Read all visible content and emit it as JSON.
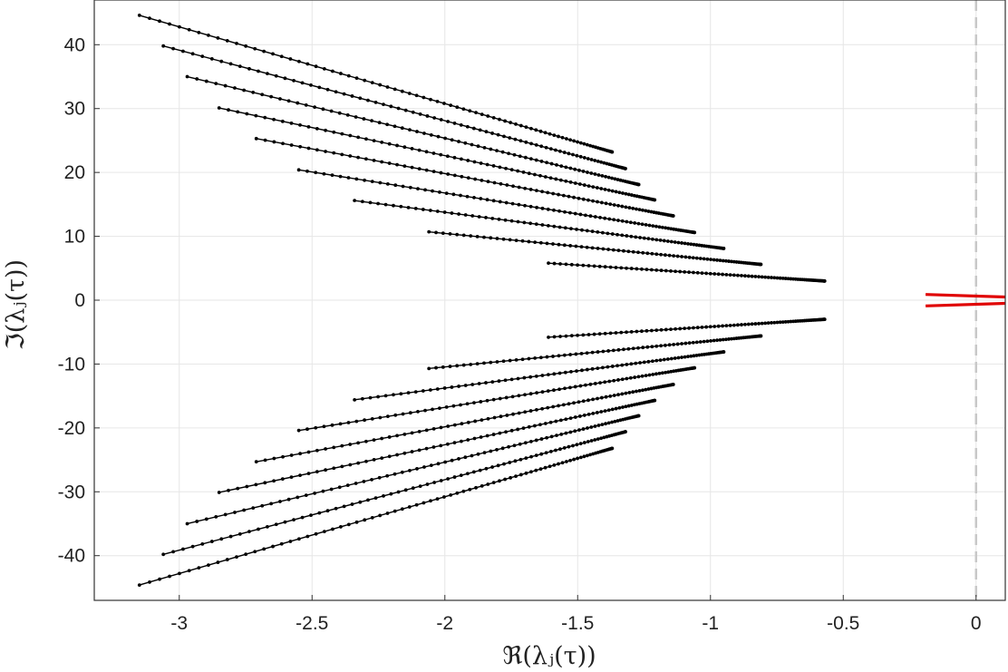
{
  "chart_data": {
    "type": "scatter",
    "xlabel": "ℜ(λⱼ(τ))",
    "ylabel": "ℑ(λⱼ(τ))",
    "xlim": [
      -3.32,
      0.11
    ],
    "ylim": [
      -47,
      47
    ],
    "grid": true,
    "x_ticks": [
      -3,
      -2.5,
      -2,
      -1.5,
      -1,
      -0.5,
      0
    ],
    "x_tick_labels": [
      "-3",
      "-2.5",
      "-2",
      "-1.5",
      "-1",
      "-0.5",
      "0"
    ],
    "y_ticks": [
      40,
      30,
      20,
      10,
      0,
      -10,
      -20,
      -30,
      -40
    ],
    "y_tick_labels": [
      "40",
      "30",
      "20",
      "10",
      "0",
      "-10",
      "-20",
      "-30",
      "-40"
    ],
    "reference_line": {
      "x": 0,
      "style": "dashed",
      "color": "#c8c8c8"
    },
    "colors": {
      "branch": "#000000",
      "unstable": "#e00000",
      "grid": "#e6e6e6",
      "axes": "#333333"
    },
    "series": [
      {
        "color": "#000000",
        "start": [
          -3.15,
          44.6
        ],
        "end": [
          -1.37,
          23.2
        ],
        "points": 80,
        "mirrored": true
      },
      {
        "color": "#000000",
        "start": [
          -3.06,
          39.8
        ],
        "end": [
          -1.32,
          20.6
        ],
        "points": 80,
        "mirrored": true
      },
      {
        "color": "#000000",
        "start": [
          -2.97,
          35.0
        ],
        "end": [
          -1.27,
          18.1
        ],
        "points": 80,
        "mirrored": true
      },
      {
        "color": "#000000",
        "start": [
          -2.85,
          30.1
        ],
        "end": [
          -1.21,
          15.7
        ],
        "points": 80,
        "mirrored": true
      },
      {
        "color": "#000000",
        "start": [
          -2.71,
          25.3
        ],
        "end": [
          -1.14,
          13.2
        ],
        "points": 80,
        "mirrored": true
      },
      {
        "color": "#000000",
        "start": [
          -2.55,
          20.4
        ],
        "end": [
          -1.06,
          10.6
        ],
        "points": 80,
        "mirrored": true
      },
      {
        "color": "#000000",
        "start": [
          -2.34,
          15.6
        ],
        "end": [
          -0.95,
          8.1
        ],
        "points": 80,
        "mirrored": true
      },
      {
        "color": "#000000",
        "start": [
          -2.06,
          10.7
        ],
        "end": [
          -0.81,
          5.6
        ],
        "points": 80,
        "mirrored": true
      },
      {
        "color": "#000000",
        "start": [
          -1.61,
          5.8
        ],
        "end": [
          -0.57,
          3.0
        ],
        "points": 80,
        "mirrored": true
      },
      {
        "color": "#e00000",
        "start": [
          -0.19,
          0.9
        ],
        "end": [
          0.11,
          0.5
        ],
        "points": 80,
        "mirrored": true
      }
    ]
  }
}
